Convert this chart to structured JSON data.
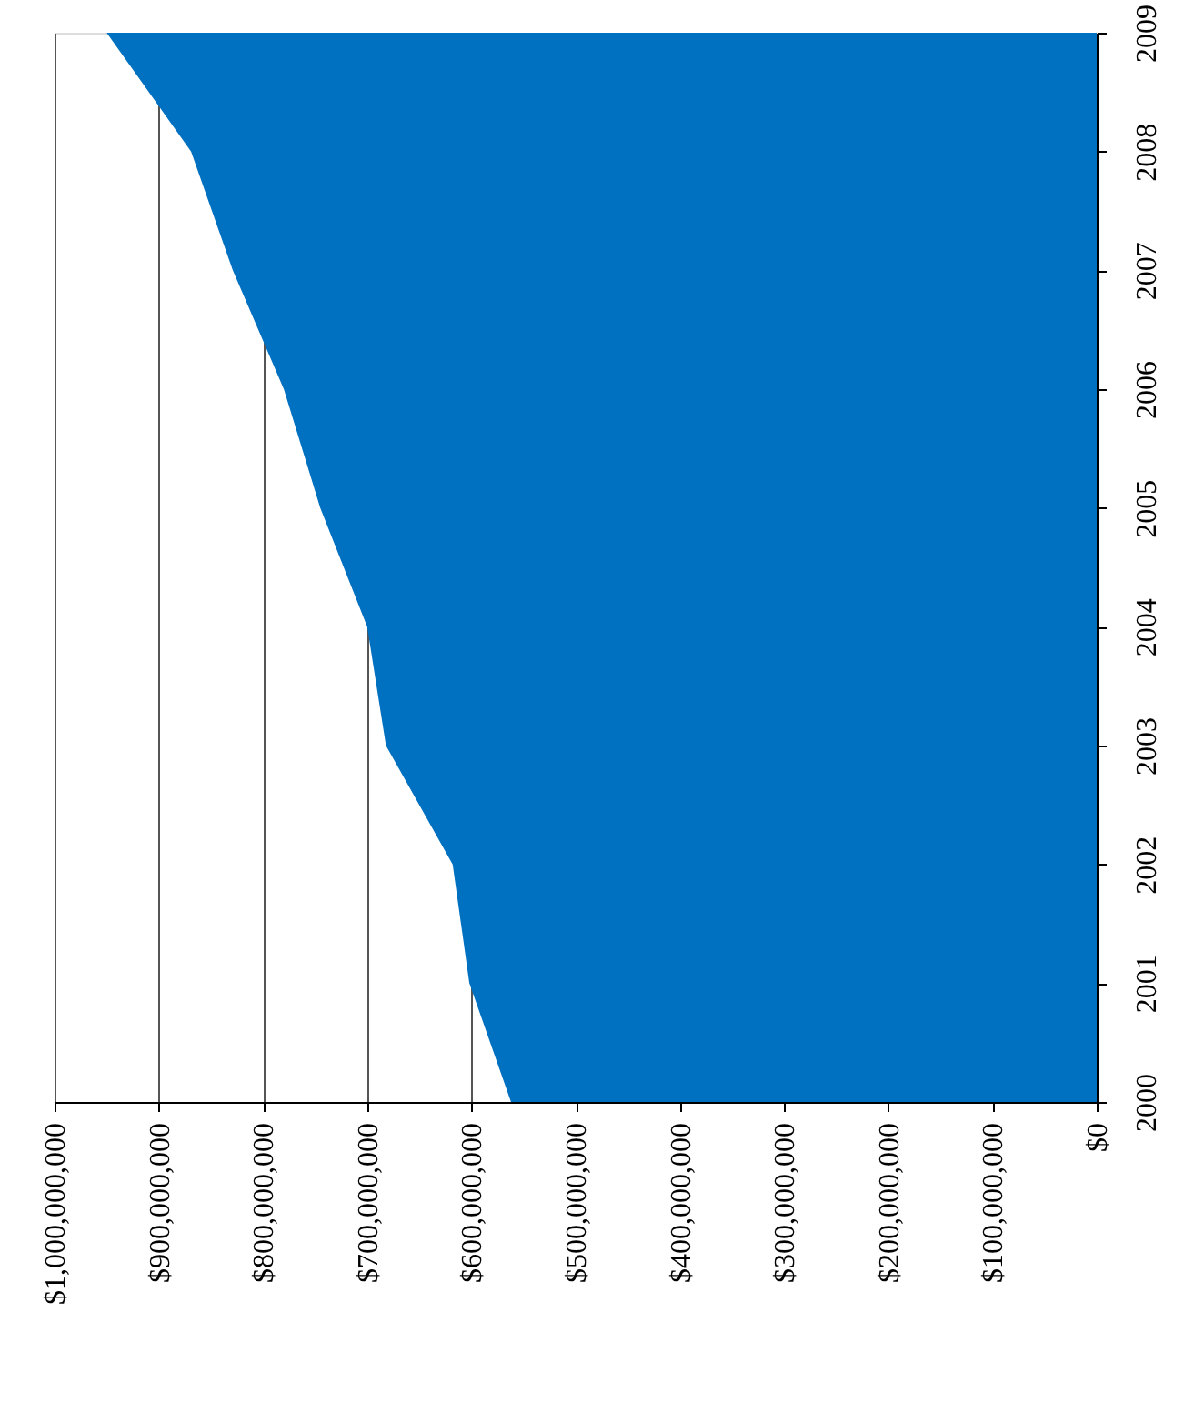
{
  "chart_data": {
    "type": "area",
    "orientation": "horizontal",
    "categories": [
      "2009",
      "2008",
      "2007",
      "2006",
      "2005",
      "2004",
      "2003",
      "2002",
      "2001",
      "2000"
    ],
    "series": [
      {
        "color": "#0070c0",
        "values": [
          950000000,
          869000000,
          829000000,
          780000000,
          745000000,
          700000000,
          682000000,
          618000000,
          602000000,
          562000000
        ]
      }
    ],
    "xlim": [
      1000000000,
      0
    ],
    "xticks": [
      {
        "value": 1000000000,
        "label": "$1,000,000,000"
      },
      {
        "value": 900000000,
        "label": "$900,000,000"
      },
      {
        "value": 800000000,
        "label": "$800,000,000"
      },
      {
        "value": 700000000,
        "label": "$700,000,000"
      },
      {
        "value": 600000000,
        "label": "$600,000,000"
      },
      {
        "value": 500000000,
        "label": "$500,000,000"
      },
      {
        "value": 400000000,
        "label": "$400,000,000"
      },
      {
        "value": 300000000,
        "label": "$300,000,000"
      },
      {
        "value": 200000000,
        "label": "$200,000,000"
      },
      {
        "value": 100000000,
        "label": "$100,000,000"
      },
      {
        "value": 0,
        "label": "$0"
      }
    ],
    "grid": "x"
  }
}
